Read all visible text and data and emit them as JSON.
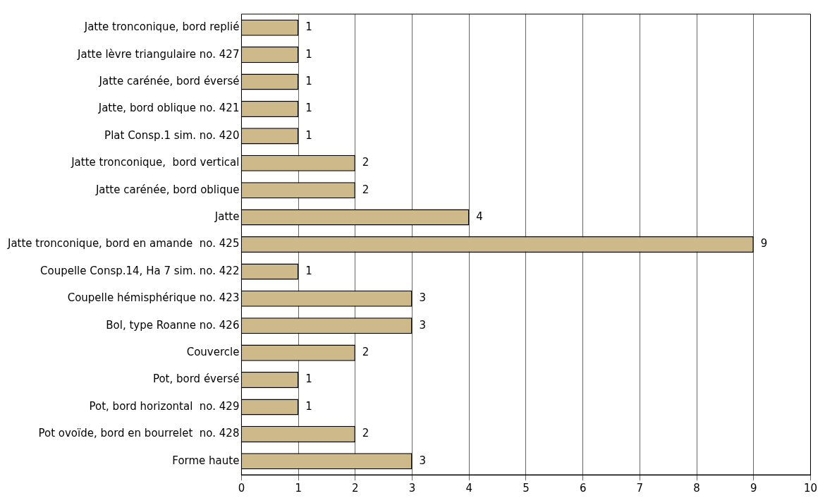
{
  "chart_data": {
    "type": "bar",
    "orientation": "horizontal",
    "categories": [
      "Jatte tronconique, bord replié",
      "Jatte lèvre triangulaire no. 427",
      "Jatte carénée, bord éversé",
      "Jatte, bord oblique no. 421",
      "Plat Consp.1 sim. no. 420",
      "Jatte tronconique,  bord vertical",
      "Jatte carénée, bord oblique",
      "Jatte",
      "Jatte tronconique, bord en amande  no. 425",
      "Coupelle Consp.14, Ha 7 sim. no. 422",
      "Coupelle hémisphérique no. 423",
      "Bol, type Roanne no. 426",
      "Couvercle",
      "Pot, bord éversé",
      "Pot, bord horizontal  no. 429",
      "Pot ovoïde, bord en bourrelet  no. 428",
      "Forme haute"
    ],
    "values": [
      1,
      1,
      1,
      1,
      1,
      2,
      2,
      4,
      9,
      1,
      3,
      3,
      2,
      1,
      1,
      2,
      3
    ],
    "color": "#cdb98a",
    "xlim": [
      0,
      10
    ],
    "xticks": [
      0,
      1,
      2,
      3,
      4,
      5,
      6,
      7,
      8,
      9,
      10
    ],
    "grid": "x",
    "data_labels": true
  }
}
